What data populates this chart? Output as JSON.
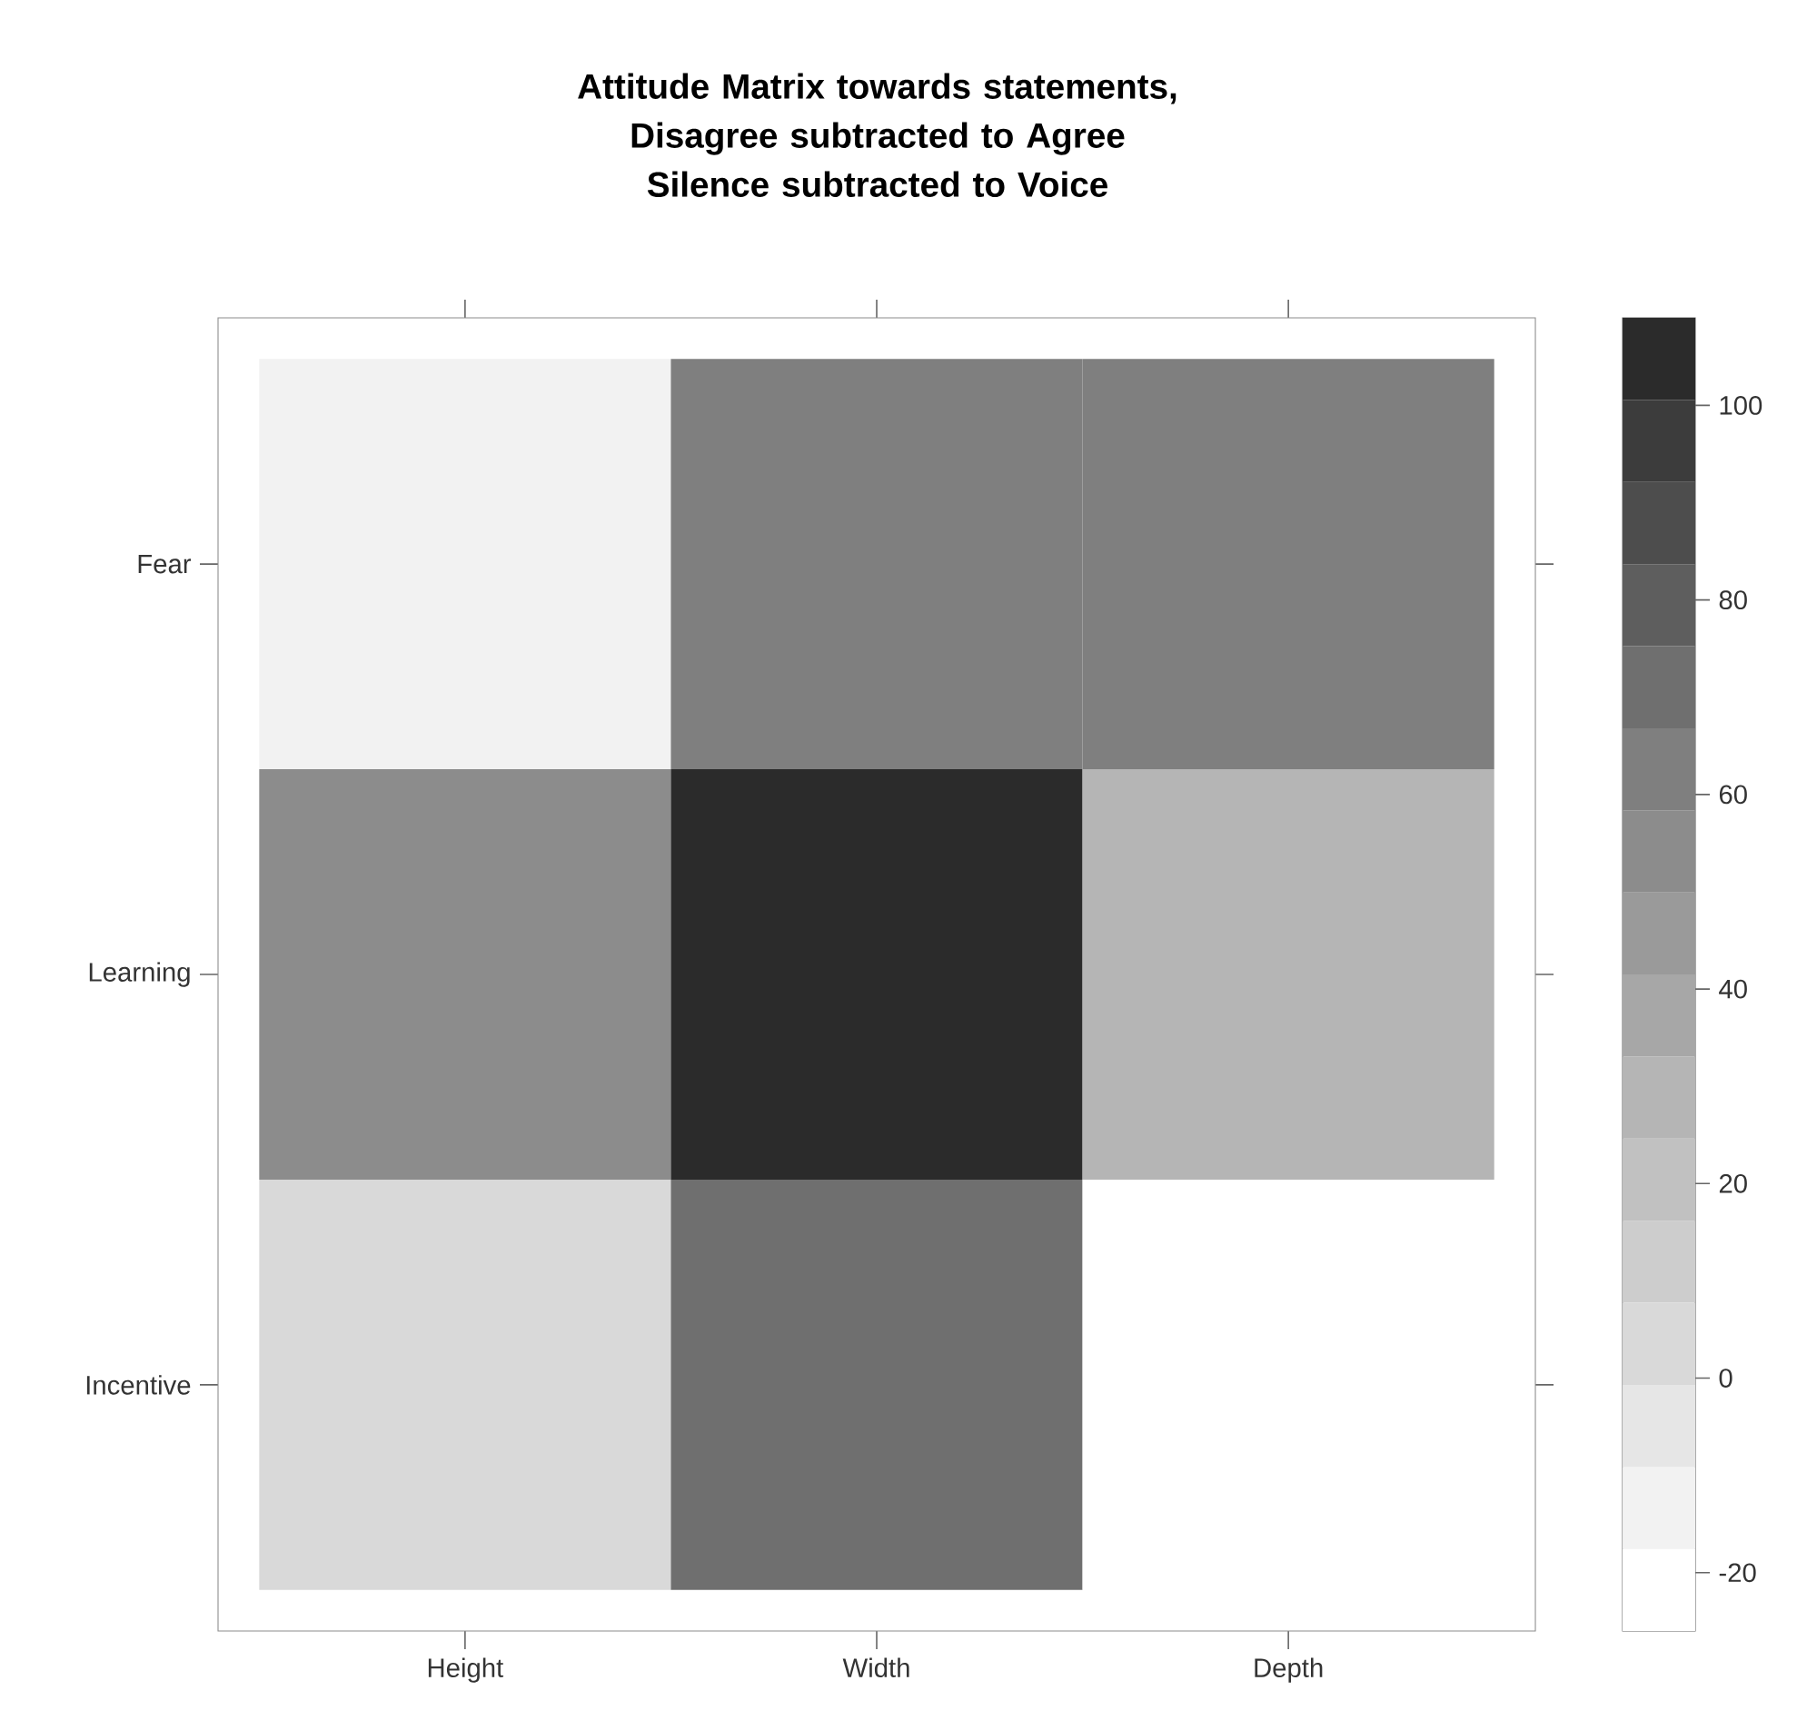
{
  "chart_data": {
    "type": "heatmap",
    "title": "Attitude Matrix towards statements, Disagree subtracted to Agree Silence subtracted to Voice",
    "categories": [
      "Height",
      "Width",
      "Depth"
    ],
    "y_categories": [
      "Fear",
      "Learning",
      "Incentive"
    ],
    "cells": [
      [
        -13,
        63,
        63
      ],
      [
        54,
        109,
        29
      ],
      [
        4,
        71,
        -26
      ]
    ],
    "clim": [
      -26,
      109
    ],
    "cticks": [
      -20,
      0,
      20,
      40,
      60,
      80,
      100
    ]
  }
}
